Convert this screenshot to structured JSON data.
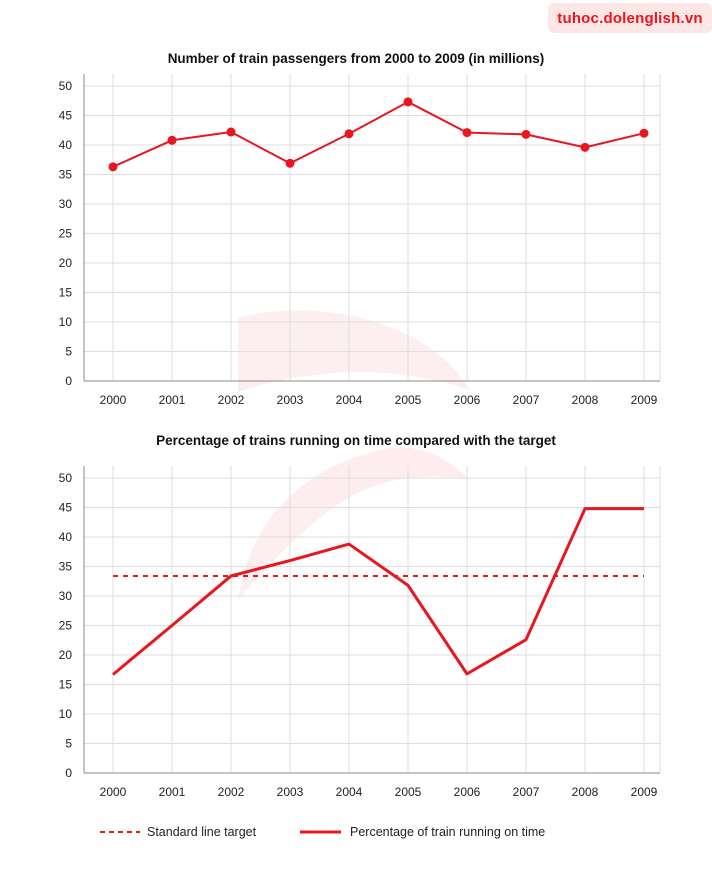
{
  "watermark": {
    "text": "tuhoc.dolenglish.vn"
  },
  "colors": {
    "series": "#e8161f",
    "grid": "#dddddd",
    "axis": "#888888"
  },
  "chart_data": [
    {
      "type": "line",
      "title": "Number of train passengers from 2000 to 2009 (in millions)",
      "xlabel": "",
      "ylabel": "",
      "categories": [
        "2000",
        "2001",
        "2002",
        "2003",
        "2004",
        "2005",
        "2006",
        "2007",
        "2008",
        "2009"
      ],
      "ylim": [
        0,
        50
      ],
      "yticks": [
        0,
        5,
        10,
        15,
        20,
        25,
        30,
        35,
        40,
        45,
        50
      ],
      "grid": true,
      "series": [
        {
          "values": [
            36.3,
            40.8,
            42.2,
            36.9,
            41.9,
            47.3,
            42.1,
            41.8,
            39.6,
            42.0
          ],
          "markers": true
        }
      ]
    },
    {
      "type": "line",
      "title": "Percentage of trains running on time compared with the target",
      "xlabel": "",
      "ylabel": "",
      "categories": [
        "2000",
        "2001",
        "2002",
        "2003",
        "2004",
        "2005",
        "2006",
        "2007",
        "2008",
        "2009"
      ],
      "ylim": [
        0,
        50
      ],
      "yticks": [
        0,
        5,
        10,
        15,
        20,
        25,
        30,
        35,
        40,
        45,
        50
      ],
      "grid": true,
      "legend_position": "bottom",
      "series": [
        {
          "name": "Standard line target",
          "values": [
            33.4,
            33.4,
            33.4,
            33.4,
            33.4,
            33.4,
            33.4,
            33.4,
            33.4,
            33.4
          ],
          "style": "dashed"
        },
        {
          "name": "Percentage of train running on time",
          "values": [
            16.7,
            25.0,
            33.4,
            36.0,
            38.8,
            31.8,
            16.8,
            22.6,
            44.8,
            44.8
          ],
          "style": "solid"
        }
      ]
    }
  ]
}
